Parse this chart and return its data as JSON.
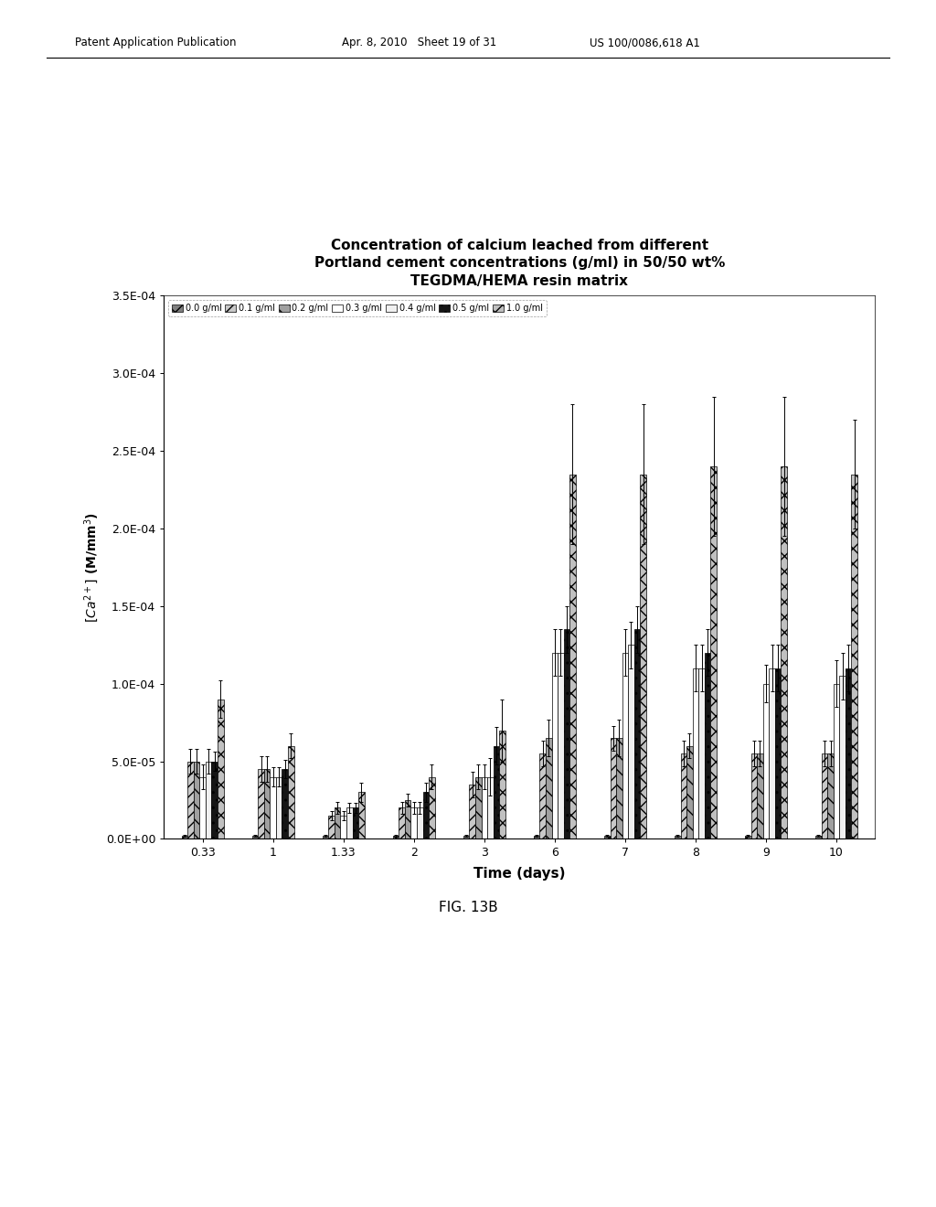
{
  "title_line1": "Concentration of calcium leached from different",
  "title_line2": "Portland cement concentrations (g/ml) in 50/50 wt%",
  "title_line3": "TEGDMA/HEMA resin matrix",
  "xlabel": "Time (days)",
  "header_text1": "Patent Application Publication",
  "header_text2": "Apr. 8, 2010   Sheet 19 of 31",
  "header_text3": "US 100/0086,618 A1",
  "caption": "FIG. 13B",
  "series_labels": [
    "0.0 g/ml",
    "0.1 g/ml",
    "0.2 g/ml",
    "0.3 g/ml",
    "0.4 g/ml",
    "0.5 g/ml",
    "1.0 g/ml"
  ],
  "time_points": [
    0.33,
    1,
    1.33,
    2,
    3,
    6,
    7,
    8,
    9,
    10
  ],
  "time_labels": [
    "0.33",
    "1",
    "1.33",
    "2",
    "3",
    "6",
    "7",
    "8",
    "9",
    "10"
  ],
  "ylim": [
    0,
    0.00035
  ],
  "ytick_vals": [
    0.0,
    5e-05,
    0.0001,
    0.00015,
    0.0002,
    0.00025,
    0.0003,
    0.00035
  ],
  "ytick_labels": [
    "0.0E+00",
    "5.0E-05",
    "1.0E-04",
    "1.5E-04",
    "2.0E-04",
    "2.5E-04",
    "3.0E-04",
    "3.5E-04"
  ],
  "bar_data": [
    [
      2e-06,
      2e-06,
      2e-06,
      2e-06,
      2e-06,
      2e-06,
      2e-06,
      2e-06,
      2e-06,
      2e-06
    ],
    [
      5e-05,
      4.5e-05,
      1.5e-05,
      2e-05,
      3.5e-05,
      5.5e-05,
      6.5e-05,
      5.5e-05,
      5.5e-05,
      5.5e-05
    ],
    [
      5e-05,
      4.5e-05,
      2e-05,
      2.5e-05,
      4e-05,
      6.5e-05,
      6.5e-05,
      6e-05,
      5.5e-05,
      5.5e-05
    ],
    [
      4e-05,
      4e-05,
      1.5e-05,
      2e-05,
      4e-05,
      0.00012,
      0.00012,
      0.00011,
      0.0001,
      0.0001
    ],
    [
      5e-05,
      4e-05,
      2e-05,
      2e-05,
      4e-05,
      0.00012,
      0.000125,
      0.00011,
      0.00011,
      0.000105
    ],
    [
      5e-05,
      4.5e-05,
      2e-05,
      3e-05,
      6e-05,
      0.000135,
      0.000135,
      0.00012,
      0.00011,
      0.00011
    ],
    [
      9e-05,
      6e-05,
      3e-05,
      4e-05,
      7e-05,
      0.000235,
      0.000235,
      0.00024,
      0.00024,
      0.000235
    ]
  ],
  "err_data": [
    [
      5e-07,
      5e-07,
      5e-07,
      5e-07,
      5e-07,
      5e-07,
      5e-07,
      5e-07,
      5e-07,
      5e-07
    ],
    [
      8e-06,
      8e-06,
      3e-06,
      4e-06,
      8e-06,
      8e-06,
      8e-06,
      8e-06,
      8e-06,
      8e-06
    ],
    [
      8e-06,
      8e-06,
      4e-06,
      4e-06,
      8e-06,
      1.2e-05,
      1.2e-05,
      8e-06,
      8e-06,
      8e-06
    ],
    [
      8e-06,
      6e-06,
      3e-06,
      4e-06,
      8e-06,
      1.5e-05,
      1.5e-05,
      1.5e-05,
      1.2e-05,
      1.5e-05
    ],
    [
      8e-06,
      6e-06,
      3e-06,
      4e-06,
      1.2e-05,
      1.5e-05,
      1.5e-05,
      1.5e-05,
      1.5e-05,
      1.5e-05
    ],
    [
      6e-06,
      6e-06,
      3e-06,
      6e-06,
      1.2e-05,
      1.5e-05,
      1.5e-05,
      1.5e-05,
      1.5e-05,
      1.5e-05
    ],
    [
      1.2e-05,
      8e-06,
      6e-06,
      8e-06,
      2e-05,
      4.5e-05,
      4.5e-05,
      4.5e-05,
      4.5e-05,
      3.5e-05
    ]
  ],
  "hatch_patterns": [
    "xx",
    "///",
    "\\\\",
    "",
    "",
    "...",
    "xx"
  ],
  "face_colors": [
    "#808080",
    "#c0c0c0",
    "#909090",
    "#ffffff",
    "#f0f0f0",
    "#1a1a1a",
    "#b0b0b0"
  ],
  "background_color": "#ffffff"
}
